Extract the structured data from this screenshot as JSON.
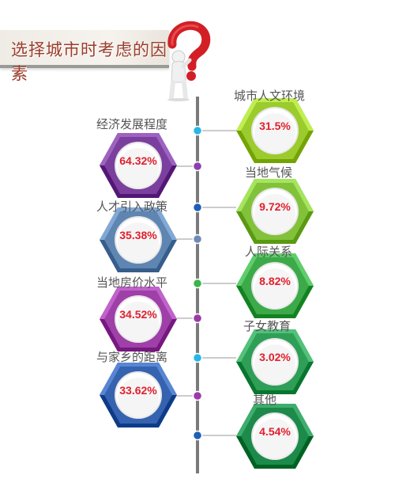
{
  "title": "选择城市时考虑的因素",
  "left_items": [
    {
      "label": "经济发展程度",
      "value": "64.32%",
      "color": "#7b3f9e"
    },
    {
      "label": "人才引入政策",
      "value": "35.38%",
      "color": "#5f86b2"
    },
    {
      "label": "当地房价水平",
      "value": "34.52%",
      "color": "#9f3fa8"
    },
    {
      "label": "与家乡的距离",
      "value": "33.62%",
      "color": "#3563b0"
    }
  ],
  "right_items": [
    {
      "label": "城市人文环境",
      "value": "31.5%",
      "color": "#9ccb2d"
    },
    {
      "label": "当地气候",
      "value": "9.72%",
      "color": "#82c23a"
    },
    {
      "label": "人际关系",
      "value": "8.82%",
      "color": "#3daa4a"
    },
    {
      "label": "子女教育",
      "value": "3.02%",
      "color": "#2f9e57"
    },
    {
      "label": "其他",
      "value": "4.54%",
      "color": "#1c8a4a"
    }
  ],
  "dot_colors": [
    "#27b6e6",
    "#8c3fae",
    "#1f5fb8",
    "#6e8bb5",
    "#39b54a",
    "#9b3aa8",
    "#27b6e6",
    "#9b3aa8",
    "#1f5fb8"
  ]
}
